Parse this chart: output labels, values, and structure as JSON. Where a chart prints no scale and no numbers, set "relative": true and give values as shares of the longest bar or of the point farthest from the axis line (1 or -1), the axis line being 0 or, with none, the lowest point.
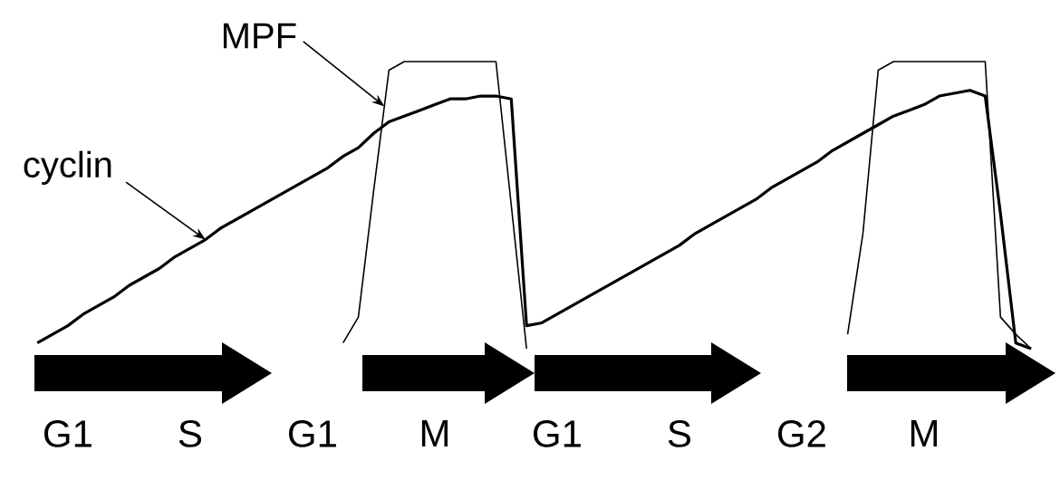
{
  "chart_data": {
    "type": "line",
    "relative": true,
    "tick_labels": "x",
    "grid": false,
    "legend": false,
    "marker": "none",
    "line_style": "solid",
    "categories": [
      null,
      null,
      "G1",
      null,
      null,
      null,
      null,
      null,
      null,
      null,
      "S",
      null,
      null,
      null,
      null,
      null,
      null,
      null,
      "G1",
      null,
      null,
      null,
      null,
      null,
      null,
      null,
      "M",
      null,
      null,
      null,
      null,
      null,
      null,
      null,
      "G1",
      null,
      null,
      null,
      null,
      null,
      null,
      null,
      "S",
      null,
      null,
      null,
      null,
      null,
      null,
      null,
      "G2",
      null,
      null,
      null,
      null,
      null,
      null,
      null,
      "M",
      null,
      null,
      null,
      null,
      null,
      null,
      null
    ],
    "series": [
      {
        "name": "cyclin",
        "color": "#000000",
        "values": [
          0.02,
          0.05,
          0.08,
          0.12,
          0.15,
          0.18,
          0.22,
          0.25,
          0.28,
          0.32,
          0.35,
          0.38,
          0.42,
          0.45,
          0.48,
          0.51,
          0.54,
          0.57,
          0.6,
          0.63,
          0.67,
          0.7,
          0.75,
          0.79,
          0.81,
          0.83,
          0.85,
          0.87,
          0.87,
          0.88,
          0.88,
          0.87,
          0.08,
          0.09,
          0.12,
          0.15,
          0.18,
          0.21,
          0.24,
          0.27,
          0.3,
          0.33,
          0.36,
          0.4,
          0.43,
          0.46,
          0.49,
          0.52,
          0.56,
          0.59,
          0.62,
          0.65,
          0.69,
          0.72,
          0.75,
          0.78,
          0.81,
          0.83,
          0.85,
          0.88,
          0.89,
          0.9,
          0.88,
          0.47,
          0.02,
          0
        ]
      },
      {
        "name": "MPF",
        "color": "#000000",
        "values": [
          null,
          null,
          null,
          null,
          null,
          null,
          null,
          null,
          null,
          null,
          null,
          null,
          null,
          null,
          null,
          null,
          null,
          null,
          null,
          null,
          0.02,
          0.11,
          0.55,
          0.97,
          1,
          1,
          1,
          1,
          1,
          1,
          1,
          0.5,
          0,
          null,
          null,
          null,
          null,
          null,
          null,
          null,
          null,
          null,
          null,
          null,
          null,
          null,
          null,
          null,
          null,
          null,
          null,
          null,
          null,
          0.05,
          0.4,
          0.97,
          1,
          1,
          1,
          1,
          1,
          1,
          1,
          0.11,
          0.05,
          0
        ]
      }
    ]
  }
}
